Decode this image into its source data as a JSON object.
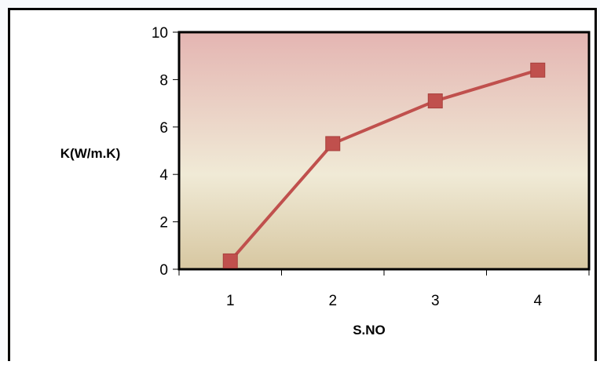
{
  "chart_data": {
    "type": "line",
    "title": "",
    "xlabel": "S.NO",
    "ylabel": "K(W/m.K)",
    "categories": [
      "1",
      "2",
      "3",
      "4"
    ],
    "series": [
      {
        "values": [
          0.35,
          5.3,
          7.1,
          8.4
        ]
      }
    ],
    "ylim": [
      0,
      10
    ],
    "yticks": [
      "0",
      "2",
      "4",
      "6",
      "8",
      "10"
    ],
    "grid": false,
    "legend": "none",
    "colors": {
      "line": "#c0504d",
      "marker": "#c0504d",
      "plot_top": "#e4b5b2",
      "plot_mid": "#f0ead6",
      "plot_bottom": "#d7c7a1",
      "plot_border": "#000000"
    }
  }
}
